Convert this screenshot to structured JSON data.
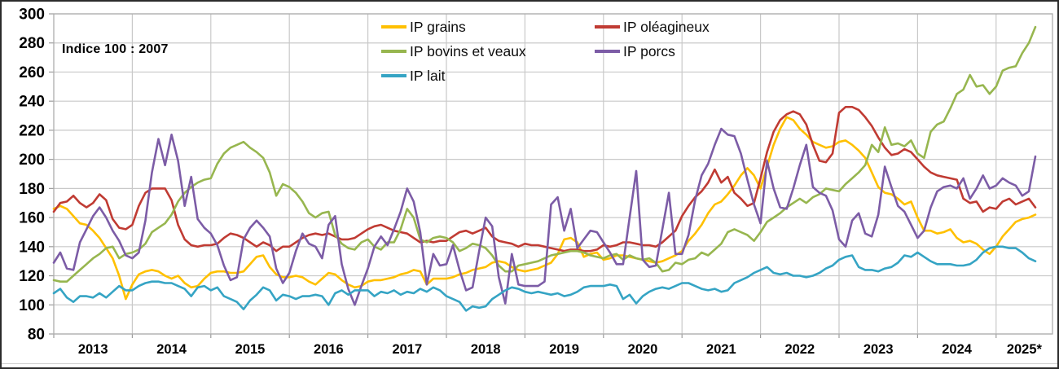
{
  "note": "Indice 100 : 2007",
  "chart_data": {
    "type": "line",
    "title": "",
    "xlabel": "",
    "ylabel": "",
    "x_frequency": "monthly",
    "x_start": "2013-01",
    "x_end": "2025-07",
    "x_tick_labels": [
      "2013",
      "2014",
      "2015",
      "2016",
      "2017",
      "2018",
      "2019",
      "2020",
      "2021",
      "2022",
      "2023",
      "2024",
      "2025*"
    ],
    "ylim": [
      80,
      300
    ],
    "y_ticks": [
      80,
      100,
      120,
      140,
      160,
      180,
      200,
      220,
      240,
      260,
      280,
      300
    ],
    "grid": true,
    "legend_position": "top-center",
    "colors": {
      "grid": "#c9c9c9",
      "frame": "#aeaeae",
      "axis_text": "#000000"
    },
    "series": [
      {
        "name": "IP grains",
        "color": "#FFC000",
        "values": [
          166,
          168,
          166,
          161,
          156,
          155,
          151,
          146,
          139,
          132,
          120,
          104,
          114,
          121,
          123,
          124,
          123,
          120,
          118,
          120,
          115,
          112,
          113,
          118,
          122,
          123,
          123,
          122,
          122,
          123,
          128,
          133,
          134,
          126,
          121,
          119,
          119,
          120,
          119,
          116,
          114,
          118,
          122,
          121,
          117,
          114,
          112,
          113,
          116,
          117,
          117,
          118,
          119,
          121,
          122,
          124,
          123,
          114,
          118,
          118,
          118,
          119,
          121,
          122,
          124,
          125,
          126,
          129,
          130,
          129,
          126,
          124,
          123,
          124,
          125,
          127,
          129,
          135,
          145,
          146,
          143,
          133,
          135,
          136,
          131,
          132,
          134,
          134,
          133,
          132,
          131,
          130,
          129,
          130,
          132,
          134,
          137,
          144,
          149,
          155,
          163,
          169,
          171,
          176,
          182,
          189,
          194,
          189,
          180,
          195,
          210,
          221,
          229,
          227,
          221,
          217,
          212,
          210,
          208,
          209,
          212,
          213,
          210,
          206,
          201,
          191,
          181,
          177,
          176,
          173,
          169,
          171,
          160,
          151,
          151,
          149,
          150,
          152,
          146,
          143,
          144,
          142,
          138,
          135,
          140,
          147,
          152,
          157,
          159,
          160,
          162
        ]
      },
      {
        "name": "IP oléagineux",
        "color": "#C03B33",
        "values": [
          164,
          170,
          171,
          175,
          170,
          167,
          170,
          176,
          172,
          159,
          153,
          152,
          155,
          168,
          177,
          180,
          180,
          180,
          172,
          155,
          145,
          141,
          140,
          141,
          141,
          142,
          146,
          149,
          148,
          146,
          143,
          140,
          143,
          141,
          137,
          140,
          140,
          143,
          146,
          148,
          149,
          148,
          149,
          147,
          145,
          145,
          146,
          149,
          152,
          154,
          155,
          153,
          151,
          150,
          149,
          146,
          143,
          144,
          143,
          144,
          144,
          147,
          150,
          151,
          149,
          151,
          153,
          147,
          144,
          143,
          142,
          140,
          142,
          141,
          141,
          140,
          139,
          138,
          137,
          138,
          138,
          137,
          137,
          138,
          141,
          140,
          141,
          143,
          143,
          142,
          141,
          141,
          140,
          143,
          147,
          151,
          161,
          168,
          174,
          178,
          184,
          193,
          184,
          188,
          177,
          173,
          168,
          170,
          187,
          205,
          219,
          227,
          231,
          233,
          231,
          224,
          210,
          199,
          198,
          204,
          232,
          236,
          236,
          234,
          229,
          223,
          215,
          208,
          203,
          204,
          207,
          205,
          200,
          195,
          191,
          189,
          188,
          187,
          186,
          173,
          170,
          171,
          164,
          167,
          166,
          171,
          173,
          169,
          171,
          173,
          167
        ]
      },
      {
        "name": "IP bovins et veaux",
        "color": "#97B64F",
        "values": [
          117,
          116,
          116,
          120,
          124,
          128,
          132,
          135,
          139,
          140,
          132,
          135,
          136,
          138,
          142,
          150,
          153,
          156,
          162,
          171,
          177,
          181,
          184,
          186,
          187,
          197,
          204,
          208,
          210,
          212,
          208,
          205,
          201,
          191,
          175,
          183,
          181,
          177,
          171,
          163,
          160,
          163,
          164,
          148,
          142,
          139,
          138,
          143,
          145,
          140,
          138,
          143,
          143,
          152,
          166,
          160,
          145,
          143,
          146,
          147,
          146,
          143,
          137,
          139,
          142,
          141,
          139,
          134,
          127,
          123,
          123,
          127,
          128,
          129,
          130,
          132,
          134,
          135,
          136,
          137,
          137,
          136,
          134,
          133,
          132,
          134,
          135,
          131,
          134,
          132,
          131,
          132,
          129,
          123,
          124,
          129,
          128,
          131,
          132,
          136,
          134,
          138,
          142,
          150,
          152,
          150,
          148,
          144,
          150,
          157,
          160,
          163,
          167,
          170,
          173,
          170,
          174,
          176,
          180,
          179,
          178,
          183,
          187,
          191,
          196,
          210,
          205,
          222,
          210,
          211,
          209,
          213,
          204,
          201,
          219,
          224,
          226,
          235,
          245,
          248,
          258,
          250,
          251,
          245,
          250,
          261,
          263,
          264,
          273,
          280,
          291
        ]
      },
      {
        "name": "IP porcs",
        "color": "#7C5CA6",
        "values": [
          129,
          136,
          125,
          124,
          143,
          152,
          161,
          167,
          160,
          151,
          144,
          134,
          132,
          136,
          158,
          191,
          214,
          196,
          217,
          199,
          168,
          188,
          159,
          153,
          149,
          141,
          127,
          117,
          119,
          145,
          153,
          158,
          153,
          147,
          125,
          115,
          122,
          137,
          149,
          142,
          140,
          132,
          155,
          161,
          128,
          111,
          100,
          113,
          125,
          140,
          147,
          141,
          152,
          164,
          180,
          171,
          150,
          114,
          135,
          127,
          128,
          141,
          124,
          110,
          112,
          137,
          160,
          154,
          119,
          101,
          135,
          114,
          113,
          113,
          113,
          116,
          169,
          174,
          151,
          166,
          139,
          145,
          151,
          150,
          143,
          136,
          128,
          128,
          160,
          192,
          131,
          126,
          127,
          152,
          177,
          135,
          135,
          148,
          172,
          189,
          197,
          210,
          221,
          217,
          216,
          204,
          186,
          169,
          156,
          199,
          180,
          167,
          166,
          180,
          196,
          210,
          181,
          177,
          175,
          165,
          145,
          140,
          158,
          163,
          149,
          147,
          162,
          195,
          181,
          168,
          164,
          155,
          146,
          151,
          167,
          178,
          181,
          182,
          180,
          187,
          173,
          180,
          189,
          180,
          182,
          187,
          184,
          182,
          175,
          178,
          202
        ]
      },
      {
        "name": "IP lait",
        "color": "#35A4C4",
        "values": [
          108,
          111,
          105,
          102,
          106,
          106,
          105,
          108,
          105,
          109,
          113,
          110,
          110,
          113,
          115,
          116,
          116,
          115,
          115,
          113,
          111,
          106,
          112,
          113,
          110,
          112,
          106,
          104,
          102,
          97,
          103,
          107,
          112,
          110,
          103,
          107,
          106,
          104,
          106,
          106,
          107,
          106,
          100,
          108,
          110,
          107,
          110,
          110,
          110,
          106,
          109,
          108,
          110,
          107,
          109,
          108,
          111,
          109,
          112,
          110,
          106,
          104,
          102,
          96,
          99,
          98,
          99,
          104,
          107,
          110,
          112,
          111,
          109,
          108,
          109,
          108,
          107,
          108,
          106,
          107,
          109,
          112,
          113,
          113,
          113,
          114,
          113,
          104,
          107,
          101,
          106,
          109,
          111,
          112,
          111,
          113,
          115,
          115,
          113,
          111,
          110,
          111,
          109,
          110,
          115,
          117,
          119,
          122,
          124,
          126,
          122,
          121,
          122,
          120,
          120,
          119,
          120,
          122,
          125,
          127,
          131,
          133,
          134,
          126,
          124,
          124,
          123,
          125,
          126,
          129,
          134,
          133,
          136,
          133,
          130,
          128,
          128,
          128,
          127,
          127,
          128,
          131,
          136,
          139,
          140,
          140,
          139,
          139,
          136,
          132,
          130
        ]
      }
    ]
  }
}
